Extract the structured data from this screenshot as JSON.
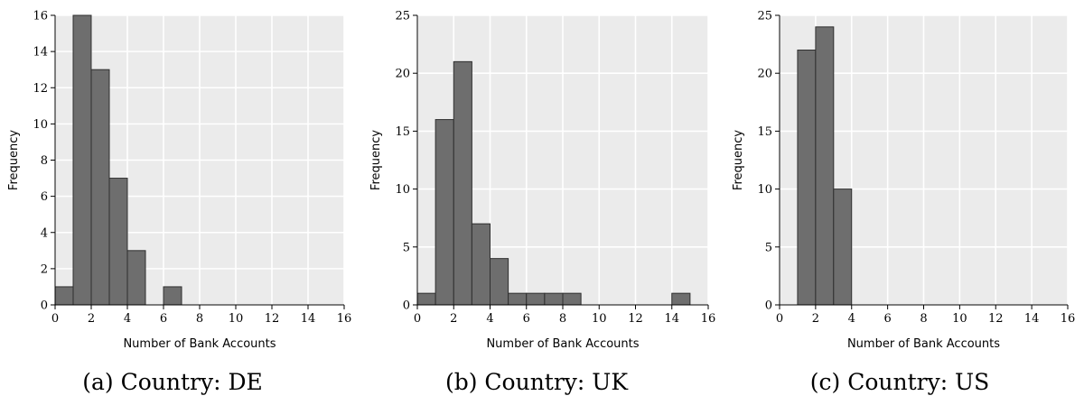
{
  "chart_data": [
    {
      "type": "bar",
      "caption": "(a) Country: DE",
      "xlabel": "Number of Bank Accounts",
      "ylabel": "Frequency",
      "xlim": [
        0,
        16
      ],
      "ylim": [
        0,
        16
      ],
      "xticks": [
        0,
        2,
        4,
        6,
        8,
        10,
        12,
        14,
        16
      ],
      "yticks": [
        0,
        2,
        4,
        6,
        8,
        10,
        12,
        14,
        16
      ],
      "bin_edges": [
        0,
        1,
        2,
        3,
        4,
        5,
        6,
        7,
        8,
        9,
        10,
        11,
        12,
        13,
        14,
        15
      ],
      "values": [
        1,
        16,
        13,
        7,
        3,
        0,
        1,
        0,
        0,
        0,
        0,
        0,
        0,
        0,
        0
      ],
      "grid": true
    },
    {
      "type": "bar",
      "caption": "(b) Country: UK",
      "xlabel": "Number of Bank Accounts",
      "ylabel": "Frequency",
      "xlim": [
        0,
        16
      ],
      "ylim": [
        0,
        25
      ],
      "xticks": [
        0,
        2,
        4,
        6,
        8,
        10,
        12,
        14,
        16
      ],
      "yticks": [
        0,
        5,
        10,
        15,
        20,
        25
      ],
      "bin_edges": [
        0,
        1,
        2,
        3,
        4,
        5,
        6,
        7,
        8,
        9,
        10,
        11,
        12,
        13,
        14,
        15
      ],
      "values": [
        1,
        16,
        21,
        7,
        4,
        1,
        1,
        1,
        1,
        0,
        0,
        0,
        0,
        0,
        1
      ],
      "grid": true
    },
    {
      "type": "bar",
      "caption": "(c) Country: US",
      "xlabel": "Number of Bank Accounts",
      "ylabel": "Frequency",
      "xlim": [
        0,
        16
      ],
      "ylim": [
        0,
        25
      ],
      "xticks": [
        0,
        2,
        4,
        6,
        8,
        10,
        12,
        14,
        16
      ],
      "yticks": [
        0,
        5,
        10,
        15,
        20,
        25
      ],
      "bin_edges": [
        0,
        1,
        2,
        3,
        4,
        5,
        6,
        7,
        8,
        9,
        10,
        11,
        12,
        13,
        14,
        15
      ],
      "values": [
        0,
        22,
        24,
        10,
        0,
        0,
        0,
        0,
        0,
        0,
        0,
        0,
        0,
        0,
        0
      ],
      "grid": true
    }
  ],
  "colors": {
    "bar_fill": "#6e6e6e",
    "bar_edge": "#2f2f2f",
    "plot_bg": "#ebebeb",
    "grid": "#ffffff"
  }
}
